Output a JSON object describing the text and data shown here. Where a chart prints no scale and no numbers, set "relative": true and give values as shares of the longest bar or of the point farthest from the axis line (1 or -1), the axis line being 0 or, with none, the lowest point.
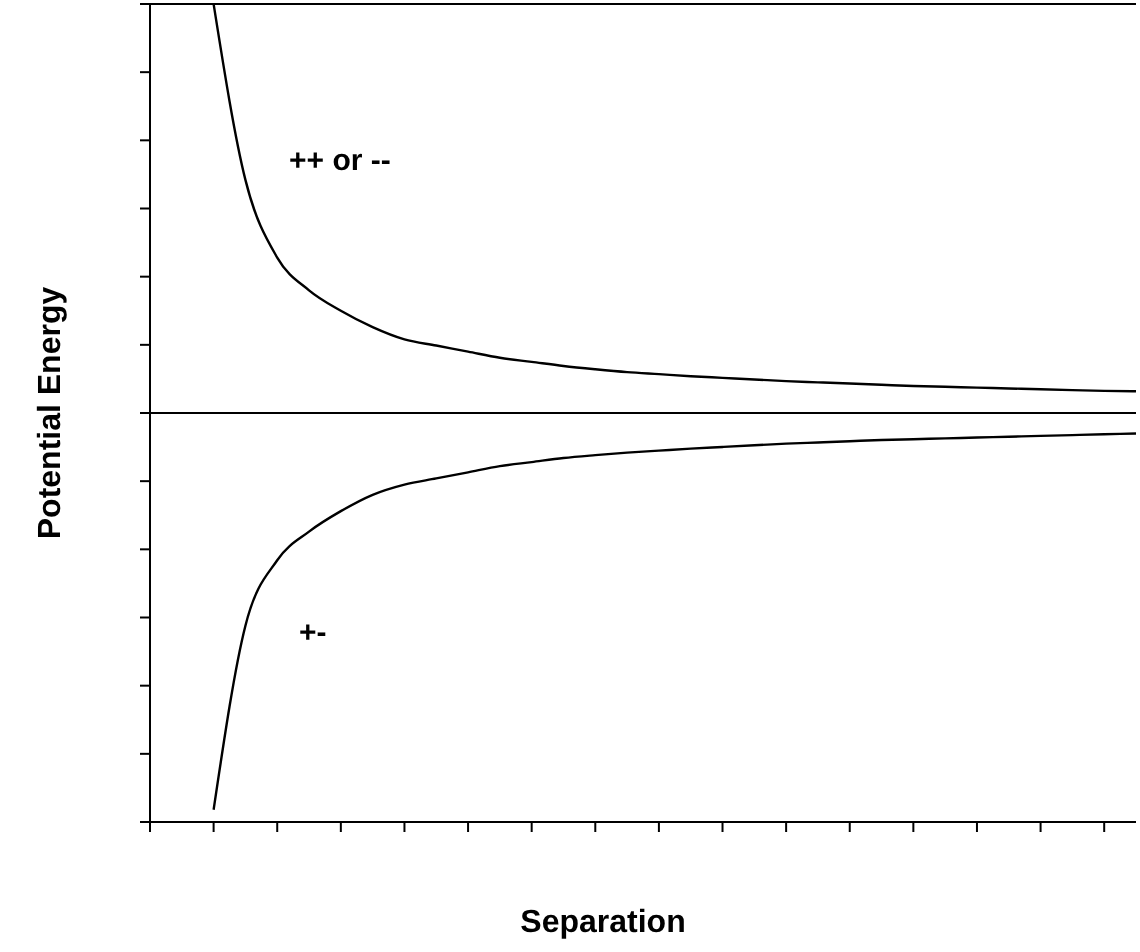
{
  "chart_data": {
    "type": "line",
    "relative": true,
    "xlabel": "Separation",
    "ylabel": "Potential Energy",
    "categories": [
      null,
      null,
      null,
      null,
      null,
      null,
      null,
      null,
      null,
      null,
      null,
      null,
      null,
      null,
      null,
      null,
      null,
      null,
      null,
      null,
      null,
      null,
      null,
      null,
      null,
      null,
      null,
      null,
      null,
      null,
      null,
      null
    ],
    "series": [
      {
        "name": "++ or --",
        "color": "#000000",
        "values": [
          null,
          null,
          1.0,
          0.57,
          0.38,
          0.3,
          0.25,
          0.21,
          0.18,
          0.165,
          0.15,
          0.135,
          0.125,
          0.115,
          0.107,
          0.1,
          0.095,
          0.09,
          0.086,
          0.082,
          0.078,
          0.075,
          0.072,
          0.069,
          0.066,
          0.064,
          0.062,
          0.06,
          0.058,
          0.056,
          0.054,
          0.053
        ]
      },
      {
        "name": "+-",
        "color": "#000000",
        "values": [
          null,
          null,
          -0.97,
          -0.52,
          -0.36,
          -0.29,
          -0.24,
          -0.2,
          -0.175,
          -0.16,
          -0.145,
          -0.13,
          -0.12,
          -0.11,
          -0.103,
          -0.097,
          -0.092,
          -0.087,
          -0.083,
          -0.079,
          -0.075,
          -0.072,
          -0.069,
          -0.066,
          -0.064,
          -0.062,
          -0.06,
          -0.058,
          -0.056,
          -0.054,
          -0.052,
          -0.05
        ]
      }
    ]
  }
}
